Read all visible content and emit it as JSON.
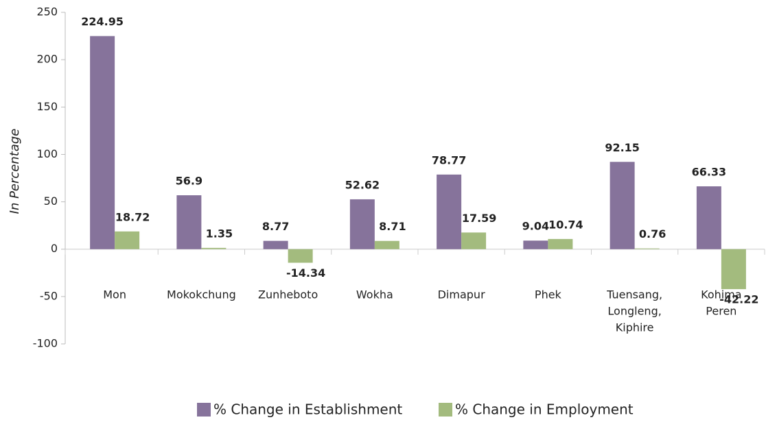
{
  "chart_data": {
    "type": "bar",
    "y_label": "In Percentage",
    "categories": [
      "Mon",
      "Mokokchung",
      "Zunheboto",
      "Wokha",
      "Dimapur",
      "Phek",
      [
        "Tuensang,",
        "Longleng,",
        "Kiphire"
      ],
      [
        "Kohima",
        "Peren"
      ]
    ],
    "series": [
      {
        "name": "% Change in Establishment",
        "color": "#86739b",
        "values": [
          224.95,
          56.9,
          8.77,
          52.62,
          78.77,
          9.04,
          92.15,
          66.33
        ]
      },
      {
        "name": "% Change in Employment",
        "color": "#a3bb7e",
        "values": [
          18.72,
          1.35,
          -14.34,
          8.71,
          17.59,
          10.74,
          0.76,
          -42.22
        ]
      }
    ],
    "ylim": [
      -100,
      250
    ],
    "yticks": [
      -100,
      -50,
      0,
      50,
      100,
      150,
      200,
      250
    ],
    "grid": false
  }
}
